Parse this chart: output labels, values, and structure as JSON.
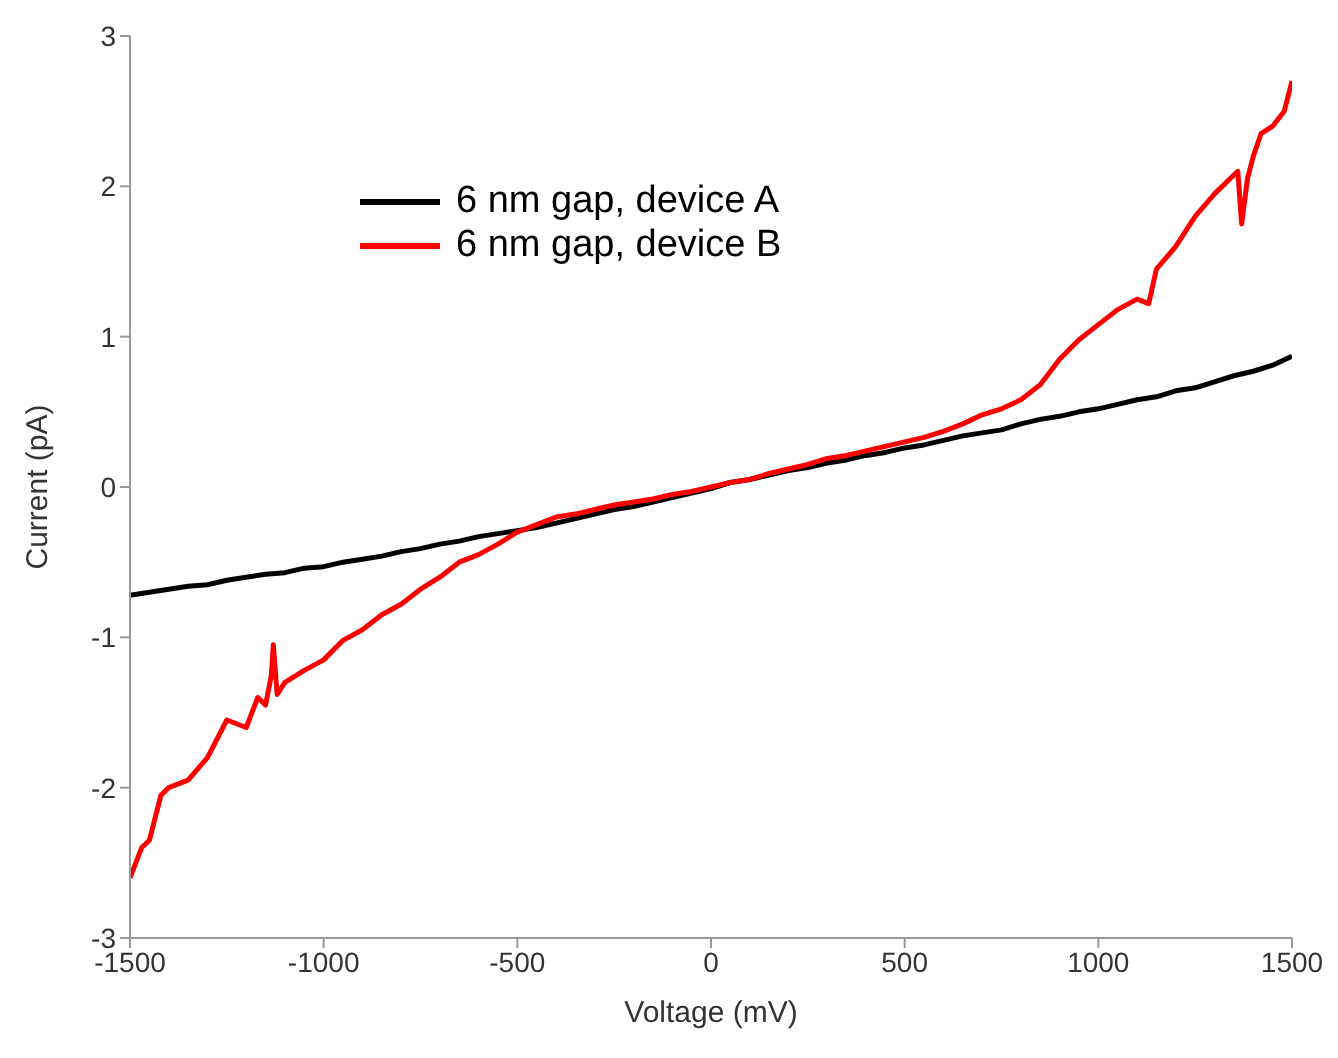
{
  "chart_data": {
    "type": "line",
    "xlabel": "Voltage (mV)",
    "ylabel": "Current (pA)",
    "xlim": [
      -1500,
      1500
    ],
    "xticks": [
      -1500,
      -1000,
      -500,
      0,
      500,
      1000,
      1500
    ],
    "ylim": [
      -3,
      3
    ],
    "yticks": [
      -3,
      -2,
      -1,
      0,
      1,
      2,
      3
    ],
    "grid": false,
    "legend": "top left",
    "marker": "none",
    "line_style": "solid",
    "series": [
      {
        "name": "6 nm gap, device A",
        "color": "#000000",
        "x": [
          -1500,
          -1450,
          -1400,
          -1350,
          -1300,
          -1250,
          -1200,
          -1150,
          -1100,
          -1050,
          -1000,
          -950,
          -900,
          -850,
          -800,
          -750,
          -700,
          -650,
          -600,
          -550,
          -500,
          -450,
          -400,
          -350,
          -300,
          -250,
          -200,
          -150,
          -100,
          -50,
          0,
          50,
          100,
          150,
          200,
          250,
          300,
          350,
          400,
          450,
          500,
          550,
          600,
          650,
          700,
          750,
          800,
          850,
          900,
          950,
          1000,
          1050,
          1100,
          1150,
          1200,
          1250,
          1300,
          1350,
          1400,
          1450,
          1500
        ],
        "values": [
          -0.72,
          -0.7,
          -0.68,
          -0.66,
          -0.65,
          -0.62,
          -0.6,
          -0.58,
          -0.57,
          -0.54,
          -0.53,
          -0.5,
          -0.48,
          -0.46,
          -0.43,
          -0.41,
          -0.38,
          -0.36,
          -0.33,
          -0.31,
          -0.29,
          -0.27,
          -0.24,
          -0.21,
          -0.18,
          -0.15,
          -0.13,
          -0.1,
          -0.07,
          -0.04,
          -0.01,
          0.03,
          0.05,
          0.08,
          0.11,
          0.13,
          0.16,
          0.18,
          0.21,
          0.23,
          0.26,
          0.28,
          0.31,
          0.34,
          0.36,
          0.38,
          0.42,
          0.45,
          0.47,
          0.5,
          0.52,
          0.55,
          0.58,
          0.6,
          0.64,
          0.66,
          0.7,
          0.74,
          0.77,
          0.81,
          0.87
        ]
      },
      {
        "name": "6 nm gap, device B",
        "color": "#ff0000",
        "x": [
          -1500,
          -1470,
          -1450,
          -1420,
          -1400,
          -1350,
          -1300,
          -1250,
          -1200,
          -1170,
          -1150,
          -1135,
          -1130,
          -1120,
          -1100,
          -1050,
          -1000,
          -950,
          -900,
          -850,
          -800,
          -750,
          -700,
          -650,
          -600,
          -550,
          -500,
          -450,
          -400,
          -350,
          -300,
          -250,
          -200,
          -150,
          -100,
          -50,
          0,
          50,
          100,
          150,
          200,
          250,
          300,
          350,
          400,
          450,
          500,
          550,
          600,
          650,
          700,
          750,
          800,
          850,
          900,
          950,
          1000,
          1050,
          1100,
          1130,
          1150,
          1200,
          1250,
          1300,
          1340,
          1360,
          1370,
          1385,
          1400,
          1420,
          1450,
          1480,
          1500
        ],
        "values": [
          -2.6,
          -2.4,
          -2.35,
          -2.05,
          -2.0,
          -1.95,
          -1.8,
          -1.55,
          -1.6,
          -1.4,
          -1.45,
          -1.25,
          -1.05,
          -1.38,
          -1.3,
          -1.22,
          -1.15,
          -1.02,
          -0.95,
          -0.85,
          -0.78,
          -0.68,
          -0.6,
          -0.5,
          -0.45,
          -0.38,
          -0.3,
          -0.25,
          -0.2,
          -0.18,
          -0.15,
          -0.12,
          -0.1,
          -0.08,
          -0.05,
          -0.03,
          0.0,
          0.03,
          0.05,
          0.09,
          0.12,
          0.15,
          0.19,
          0.21,
          0.24,
          0.27,
          0.3,
          0.33,
          0.37,
          0.42,
          0.48,
          0.52,
          0.58,
          0.68,
          0.85,
          0.98,
          1.08,
          1.18,
          1.25,
          1.22,
          1.45,
          1.6,
          1.8,
          1.95,
          2.05,
          2.1,
          1.75,
          2.05,
          2.2,
          2.35,
          2.4,
          2.5,
          2.7
        ]
      }
    ]
  }
}
